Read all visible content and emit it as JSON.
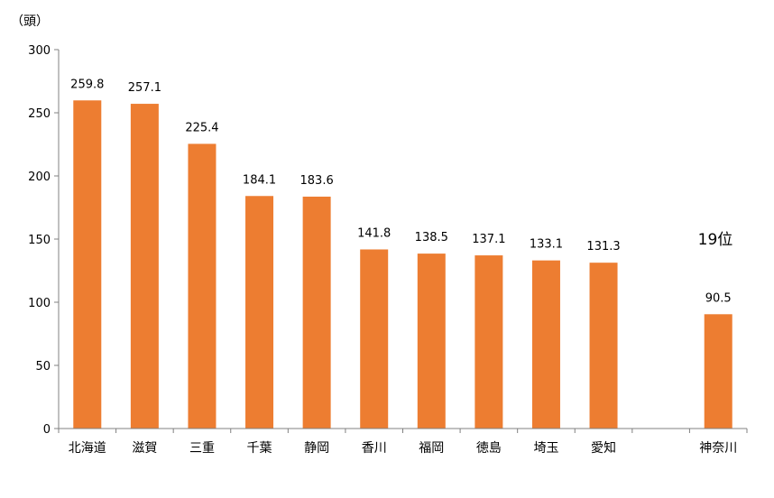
{
  "chart_data": {
    "type": "bar",
    "ylabel": "（頭）",
    "ylim": [
      0,
      300
    ],
    "yticks": [
      0,
      50,
      100,
      150,
      200,
      250,
      300
    ],
    "grid": false,
    "bar_color": "#ED7D31",
    "categories": [
      "北海道",
      "滋賀",
      "三重",
      "千葉",
      "静岡",
      "香川",
      "福岡",
      "徳島",
      "埼玉",
      "愛知",
      "",
      "神奈川"
    ],
    "values": [
      259.8,
      257.1,
      225.4,
      184.1,
      183.6,
      141.8,
      138.5,
      137.1,
      133.1,
      131.3,
      null,
      90.5
    ],
    "value_labels": [
      "259.8",
      "257.1",
      "225.4",
      "184.1",
      "183.6",
      "141.8",
      "138.5",
      "137.1",
      "133.1",
      "131.3",
      "",
      "90.5"
    ],
    "annotation": "19位"
  }
}
